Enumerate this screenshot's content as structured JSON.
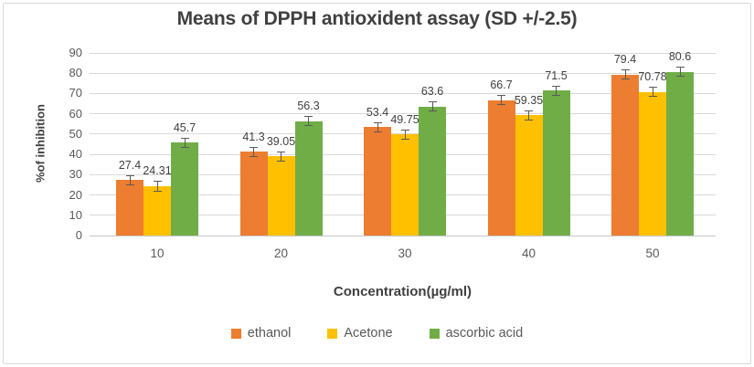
{
  "chart_data": {
    "type": "bar",
    "title": "Means of DPPH antioxident assay (SD +/-2.5)",
    "xlabel": "Concentration(µg/ml)",
    "ylabel": "%of inhibition",
    "categories": [
      "10",
      "20",
      "30",
      "40",
      "50"
    ],
    "series": [
      {
        "name": "ethanol",
        "color": "#ED7D31",
        "values": [
          27.4,
          41.3,
          53.4,
          66.7,
          79.4
        ]
      },
      {
        "name": "Acetone",
        "color": "#FFC000",
        "values": [
          24.31,
          39.05,
          49.75,
          59.35,
          70.78
        ]
      },
      {
        "name": "ascorbic acid",
        "color": "#70AD47",
        "values": [
          45.7,
          56.3,
          63.6,
          71.5,
          80.6
        ]
      }
    ],
    "error_bar_sd": 2.5,
    "ylim": [
      0,
      90
    ],
    "ytick_step": 10,
    "yticks": [
      "0",
      "10",
      "20",
      "30",
      "40",
      "50",
      "60",
      "70",
      "80",
      "90"
    ],
    "grid": "horizontal",
    "legend_position": "bottom"
  },
  "colors": {
    "background": "#FFFFFF",
    "frame_border": "#D9D9D9",
    "gridline": "#D9D9D9",
    "axis_line": "#C6C6C6",
    "tick_label": "#595959",
    "axis_title": "#404040",
    "chart_title": "#404040",
    "data_label": "#404040",
    "error_bar": "#595959"
  }
}
